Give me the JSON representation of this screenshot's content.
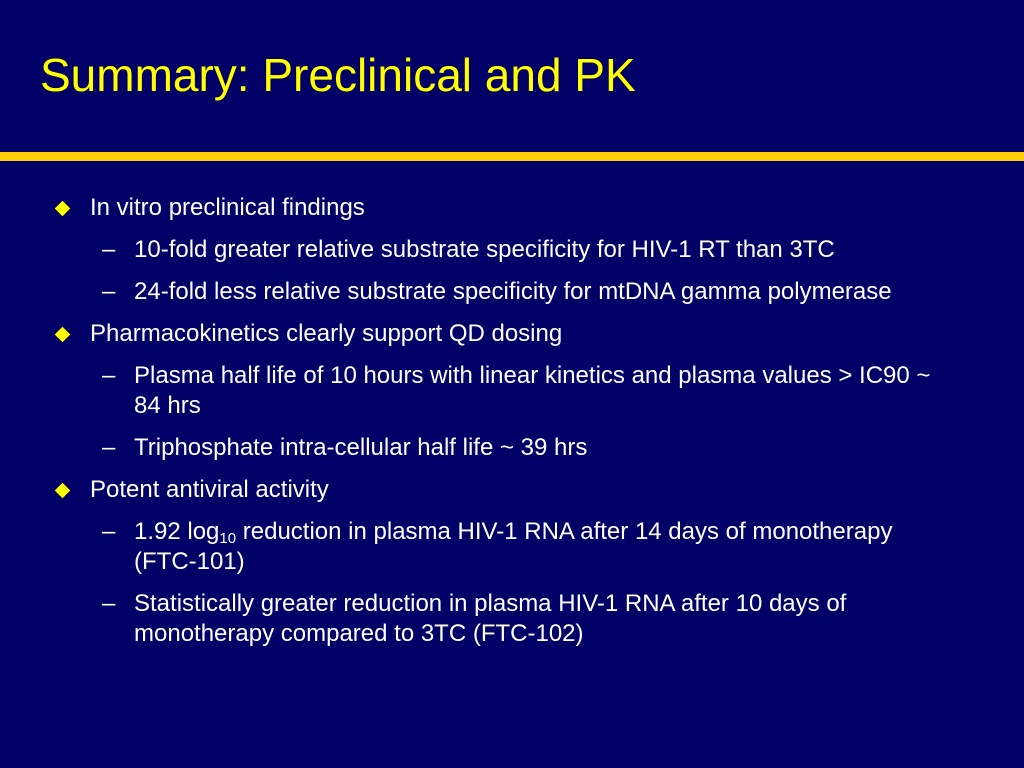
{
  "slide": {
    "title": "Summary: Preclinical and PK",
    "colors": {
      "background": "#000066",
      "title": "#ffff00",
      "divider": "#ffcc00",
      "bullet_marker": "#ffff00",
      "text": "#ffffff"
    },
    "bullet_marker_icon": "diamond-icon",
    "sub_marker": "–",
    "bullets": [
      {
        "text": "In vitro preclinical findings",
        "subs": [
          "10-fold greater relative substrate specificity for HIV-1 RT than 3TC",
          "24-fold less relative substrate specificity for mtDNA gamma polymerase"
        ]
      },
      {
        "text": "Pharmacokinetics clearly support QD dosing",
        "subs": [
          "Plasma half life of 10 hours with linear kinetics and plasma values > IC90 ~ 84 hrs",
          "Triphosphate intra-cellular half life ~ 39 hrs"
        ]
      },
      {
        "text": "Potent antiviral activity",
        "subs_special": {
          "first_prefix": "1.92 log",
          "first_subscript": "10",
          "first_suffix": " reduction in plasma HIV-1 RNA after 14 days of monotherapy (FTC-101)"
        },
        "subs": [
          "Statistically greater reduction in plasma HIV-1 RNA after 10 days of monotherapy compared to 3TC (FTC-102)"
        ]
      }
    ]
  }
}
